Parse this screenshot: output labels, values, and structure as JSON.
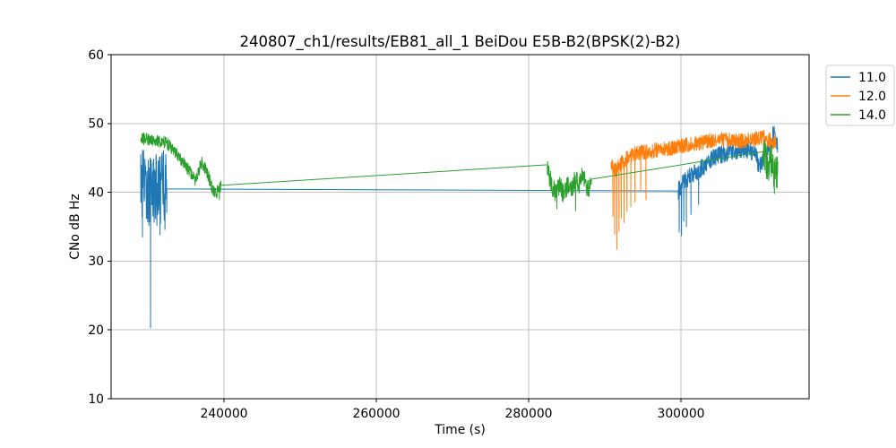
{
  "chart_data": {
    "type": "line",
    "title": "240807_ch1/results/EB81_all_1 BeiDou E5B-B2(BPSK(2)-B2)",
    "xlabel": "Time (s)",
    "ylabel": "CNo dB Hz",
    "xlim": [
      225180,
      316800
    ],
    "ylim": [
      10,
      60
    ],
    "xticks": [
      240000,
      260000,
      280000,
      300000
    ],
    "yticks": [
      10,
      20,
      30,
      40,
      50,
      60
    ],
    "xtick_labels": [
      "240000",
      "260000",
      "280000",
      "300000"
    ],
    "ytick_labels": [
      "10",
      "20",
      "30",
      "40",
      "50",
      "60"
    ],
    "grid": true,
    "legend_position": "upper right outside plot",
    "series": [
      {
        "name": "11.0",
        "color": "#1f77b4",
        "segments": [
          {
            "t0": 229060,
            "t1": 232500,
            "step": 30,
            "amp": 5.2,
            "base": [
              [
                229060,
                40.5
              ],
              [
                229500,
                41.3
              ],
              [
                230000,
                40.2
              ],
              [
                230700,
                40.8
              ],
              [
                231400,
                40.2
              ],
              [
                232000,
                41.0
              ],
              [
                232500,
                40.5
              ]
            ],
            "spikes": [
              [
                229300,
                33.5
              ],
              [
                230355,
                20.3
              ],
              [
                231600,
                33.8
              ],
              [
                232250,
                34.6
              ]
            ]
          },
          {
            "pts": [
              [
                232500,
                40.5
              ],
              [
                299600,
                40.2
              ]
            ]
          },
          {
            "t0": 299650,
            "t1": 312690,
            "step": 30,
            "amp": 1.3,
            "base": [
              [
                299650,
                40.2
              ],
              [
                300000,
                41.0
              ],
              [
                300800,
                42.0
              ],
              [
                301800,
                42.8
              ],
              [
                303000,
                43.8
              ],
              [
                304200,
                45.0
              ],
              [
                305800,
                45.7
              ],
              [
                307400,
                46.0
              ],
              [
                308800,
                46.2
              ],
              [
                309700,
                45.6
              ],
              [
                310100,
                44.3
              ],
              [
                310500,
                44.1
              ],
              [
                311000,
                45.2
              ],
              [
                311500,
                46.3
              ],
              [
                311900,
                47.3
              ],
              [
                312200,
                48.6
              ],
              [
                312450,
                47.6
              ],
              [
                312690,
                46.8
              ]
            ],
            "spikes": [
              [
                299750,
                34.2
              ],
              [
                300050,
                33.7
              ],
              [
                300350,
                35.8
              ],
              [
                300700,
                35.0
              ],
              [
                301300,
                36.8
              ],
              [
                302300,
                38.2
              ],
              [
                312050,
                49.5
              ]
            ]
          }
        ]
      },
      {
        "name": "12.0",
        "color": "#ff7f0e",
        "segments": [
          {
            "t0": 290810,
            "t1": 312450,
            "step": 30,
            "amp": 1.1,
            "base": [
              [
                290810,
                43.8
              ],
              [
                291400,
                43.2
              ],
              [
                292200,
                44.3
              ],
              [
                293200,
                45.2
              ],
              [
                294500,
                45.8
              ],
              [
                296000,
                46.0
              ],
              [
                297500,
                46.2
              ],
              [
                299000,
                46.5
              ],
              [
                300500,
                46.8
              ],
              [
                302000,
                47.0
              ],
              [
                303500,
                47.5
              ],
              [
                305000,
                47.7
              ],
              [
                306500,
                47.6
              ],
              [
                308000,
                47.4
              ],
              [
                309500,
                47.7
              ],
              [
                310800,
                48.0
              ],
              [
                311800,
                47.5
              ],
              [
                312450,
                47.0
              ]
            ],
            "spikes": [
              [
                291050,
                36.5
              ],
              [
                291280,
                33.9
              ],
              [
                291560,
                31.7
              ],
              [
                291850,
                34.3
              ],
              [
                292150,
                36.3
              ],
              [
                292500,
                35.6
              ],
              [
                292900,
                37.2
              ],
              [
                293400,
                37.9
              ],
              [
                293950,
                38.6
              ],
              [
                294700,
                40.2
              ],
              [
                295400,
                38.9
              ]
            ]
          }
        ]
      },
      {
        "name": "14.0",
        "color": "#2ca02c",
        "segments": [
          {
            "t0": 229060,
            "t1": 239600,
            "step": 30,
            "amp": 0.9,
            "base": [
              [
                229060,
                47.6
              ],
              [
                229800,
                47.9
              ],
              [
                230600,
                47.4
              ],
              [
                231770,
                47.4
              ],
              [
                232355,
                47.3
              ],
              [
                233530,
                45.9
              ],
              [
                234710,
                44.2
              ],
              [
                235530,
                43.0
              ],
              [
                236240,
                41.6
              ],
              [
                237060,
                44.4
              ],
              [
                237770,
                43.0
              ],
              [
                238470,
                40.6
              ],
              [
                238940,
                39.9
              ],
              [
                239600,
                40.9
              ]
            ],
            "spikes": [
              [
                239400,
                38.9
              ]
            ]
          },
          {
            "pts": [
              [
                239600,
                41.0
              ],
              [
                282450,
                44.0
              ]
            ]
          },
          {
            "t0": 282450,
            "t1": 288220,
            "step": 30,
            "amp": 1.5,
            "base": [
              [
                282450,
                43.8
              ],
              [
                282800,
                41.8
              ],
              [
                283200,
                40.6
              ],
              [
                283600,
                39.9
              ],
              [
                284100,
                40.9
              ],
              [
                284600,
                39.7
              ],
              [
                285100,
                41.3
              ],
              [
                285600,
                40.1
              ],
              [
                286100,
                41.9
              ],
              [
                286600,
                40.9
              ],
              [
                287100,
                42.4
              ],
              [
                287500,
                41.1
              ],
              [
                287900,
                40.3
              ],
              [
                288220,
                41.9
              ]
            ],
            "spikes": [
              [
                283700,
                37.6
              ],
              [
                286150,
                37.3
              ]
            ]
          },
          {
            "pts": [
              [
                288220,
                41.9
              ],
              [
                310780,
                45.9
              ]
            ]
          },
          {
            "t0": 310780,
            "t1": 312690,
            "step": 25,
            "amp": 2.4,
            "base": [
              [
                310780,
                46.0
              ],
              [
                311100,
                44.8
              ],
              [
                311400,
                43.8
              ],
              [
                311800,
                44.6
              ],
              [
                312100,
                43.0
              ],
              [
                312400,
                42.6
              ],
              [
                312690,
                43.6
              ]
            ],
            "spikes": [
              [
                310900,
                47.3
              ],
              [
                312250,
                39.8
              ],
              [
                312600,
                40.6
              ]
            ]
          }
        ]
      }
    ]
  }
}
